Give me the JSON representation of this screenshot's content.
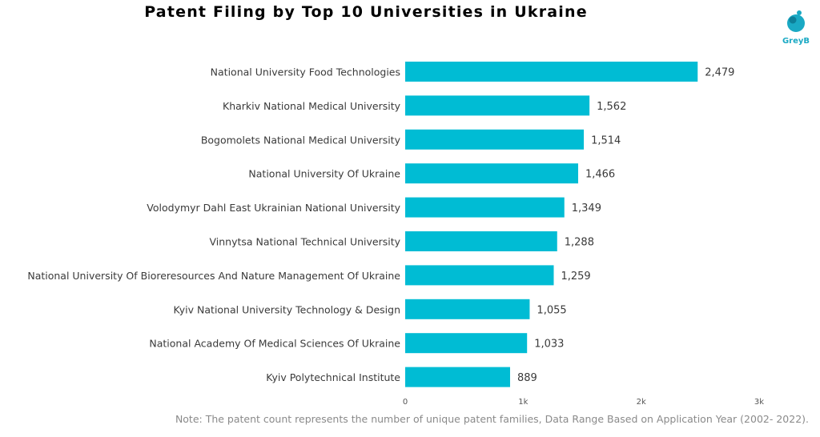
{
  "chart_data": {
    "type": "bar",
    "orientation": "horizontal",
    "title": "Patent Filing by Top 10 Universities in Ukraine",
    "categories": [
      "National University Food Technologies",
      "Kharkiv National Medical University",
      "Bogomolets National Medical University",
      "National University Of Ukraine",
      "Volodymyr Dahl East Ukrainian National University",
      "Vinnytsa National Technical University",
      "National University Of Bioreresources And Nature Management Of Ukraine",
      "Kyiv National University Technology & Design",
      "National Academy Of Medical Sciences Of Ukraine",
      "Kyiv Polytechnical Institute"
    ],
    "values": [
      2479,
      1562,
      1514,
      1466,
      1349,
      1288,
      1259,
      1055,
      1033,
      889
    ],
    "value_labels": [
      "2,479",
      "1,562",
      "1,514",
      "1,466",
      "1,349",
      "1,288",
      "1,259",
      "1,055",
      "1,033",
      "889"
    ],
    "xlim": [
      0,
      3000
    ],
    "xticks": [
      0,
      1000,
      2000,
      3000
    ],
    "xtick_labels": [
      "0",
      "1k",
      "2k",
      "3k"
    ],
    "grid": false,
    "bar_color": "#00bcd4"
  },
  "logo": {
    "text": "GreyB",
    "color": "#1aa9c4"
  },
  "note": "Note: The patent count represents the number of unique patent families, Data Range Based on Application Year (2002- 2022)."
}
